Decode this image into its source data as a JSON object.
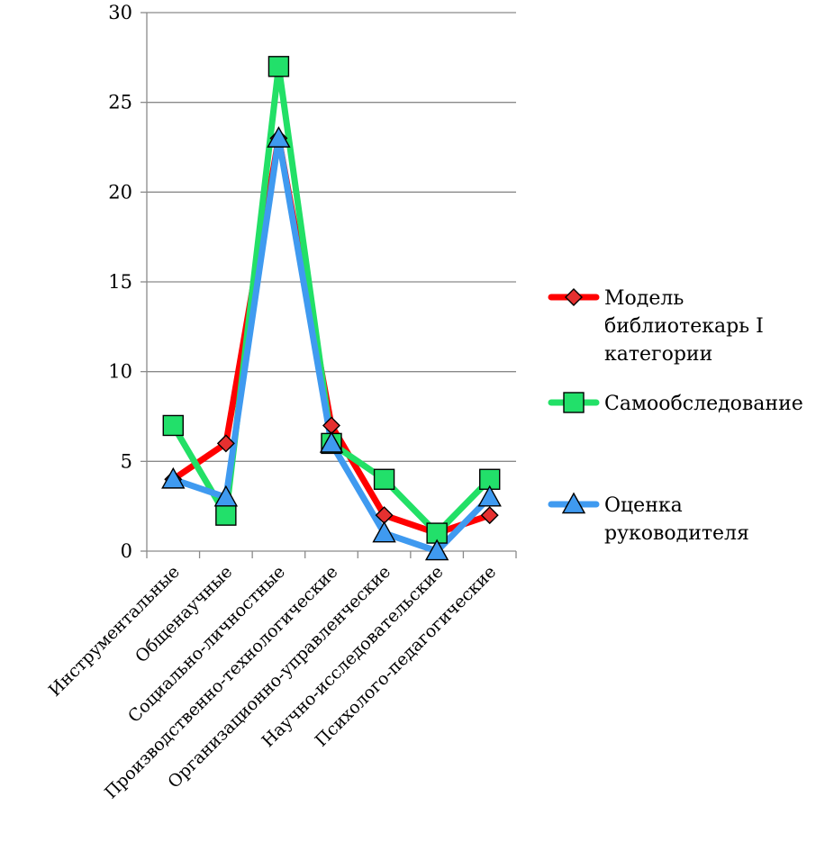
{
  "chart_data": {
    "type": "line",
    "title": "",
    "xlabel": "",
    "ylabel": "",
    "ylim": [
      0,
      30
    ],
    "yticks": [
      0,
      5,
      10,
      15,
      20,
      25,
      30
    ],
    "grid": "horizontal",
    "legend": "right",
    "categories": [
      "Инструментальные",
      "Общенаучные",
      "Социально-личностные",
      "Производственно-технологические",
      "Организационно-управленческие",
      "Научно-исследовательские",
      "Психолого-педагогические"
    ],
    "series": [
      {
        "name_lines": [
          "Модель",
          "библиотекарь I",
          "категории"
        ],
        "values": [
          4,
          6,
          23,
          7,
          2,
          1,
          2
        ],
        "color": "#ff0000",
        "marker": "diamond",
        "marker_color": "#e53030"
      },
      {
        "name_lines": [
          "Самообследование"
        ],
        "values": [
          7,
          2,
          27,
          6,
          4,
          1,
          4
        ],
        "color": "#22e066",
        "marker": "square",
        "marker_color": "#22e06a"
      },
      {
        "name_lines": [
          "Оценка",
          "руководителя"
        ],
        "values": [
          4,
          3,
          23,
          6,
          1,
          0,
          3
        ],
        "color": "#3f9af0",
        "marker": "triangle",
        "marker_color": "#3f9af0"
      }
    ]
  }
}
